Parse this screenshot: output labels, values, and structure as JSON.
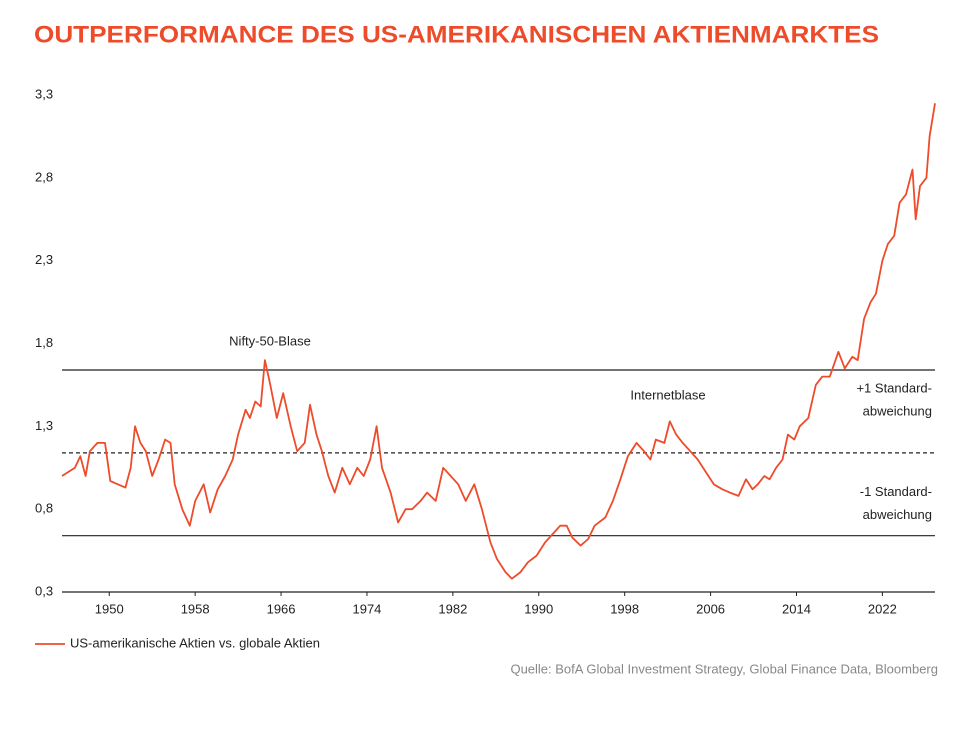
{
  "chart_data": {
    "type": "line",
    "title": "OUTPERFORMANCE DES US-AMERIKANISCHEN AKTIENMARKTES",
    "source": "Quelle: BofA Global Investment Strategy, Global Finance Data, Bloomberg",
    "x": [
      1945.6,
      1946.8,
      1947.3,
      1947.8,
      1948.2,
      1948.9,
      1949.6,
      1950.1,
      1950.8,
      1951.5,
      1952.0,
      1952.4,
      1952.9,
      1953.4,
      1954.0,
      1954.6,
      1955.2,
      1955.7,
      1956.1,
      1956.8,
      1957.5,
      1958.0,
      1958.8,
      1959.4,
      1960.1,
      1960.8,
      1961.5,
      1962.0,
      1962.7,
      1963.1,
      1963.6,
      1964.1,
      1964.5,
      1965.0,
      1965.6,
      1966.2,
      1966.9,
      1967.5,
      1968.2,
      1968.7,
      1969.3,
      1969.8,
      1970.4,
      1971.0,
      1971.7,
      1972.4,
      1973.1,
      1973.7,
      1974.3,
      1974.9,
      1975.4,
      1976.2,
      1976.9,
      1977.6,
      1978.2,
      1979.0,
      1979.6,
      1980.4,
      1981.1,
      1981.8,
      1982.5,
      1983.2,
      1984.0,
      1984.7,
      1985.5,
      1986.1,
      1986.9,
      1987.5,
      1988.3,
      1989.0,
      1989.8,
      1990.6,
      1991.3,
      1992.0,
      1992.6,
      1993.1,
      1993.9,
      1994.6,
      1995.2,
      1996.2,
      1996.9,
      1997.6,
      1998.3,
      1999.1,
      1999.8,
      2000.4,
      2000.9,
      2001.7,
      2002.2,
      2002.8,
      2003.4,
      2004.1,
      2004.8,
      2005.6,
      2006.3,
      2007.1,
      2007.8,
      2008.6,
      2009.3,
      2009.9,
      2010.4,
      2011.0,
      2011.5,
      2012.1,
      2012.7,
      2013.2,
      2013.8,
      2014.3,
      2015.1,
      2015.8,
      2016.4,
      2017.1,
      2017.9,
      2018.5,
      2019.2,
      2019.7,
      2020.3,
      2020.9,
      2021.4,
      2022.0,
      2022.5,
      2023.1,
      2023.6,
      2024.2,
      2024.8,
      2025.1,
      2025.5,
      2026.1,
      2026.4,
      2026.9
    ],
    "series": [
      {
        "name": "US-amerikanische Aktien vs. globale Aktien",
        "color": "#ee4b2b",
        "values": [
          1.0,
          1.05,
          1.12,
          1.0,
          1.15,
          1.2,
          1.2,
          0.97,
          0.95,
          0.93,
          1.05,
          1.3,
          1.2,
          1.15,
          1.0,
          1.1,
          1.22,
          1.2,
          0.95,
          0.8,
          0.7,
          0.85,
          0.95,
          0.78,
          0.92,
          1.0,
          1.1,
          1.25,
          1.4,
          1.35,
          1.45,
          1.42,
          1.7,
          1.55,
          1.35,
          1.5,
          1.3,
          1.15,
          1.2,
          1.43,
          1.25,
          1.15,
          1.0,
          0.9,
          1.05,
          0.95,
          1.05,
          1.0,
          1.1,
          1.3,
          1.05,
          0.9,
          0.72,
          0.8,
          0.8,
          0.85,
          0.9,
          0.85,
          1.05,
          1.0,
          0.95,
          0.85,
          0.95,
          0.8,
          0.6,
          0.5,
          0.42,
          0.38,
          0.42,
          0.48,
          0.52,
          0.6,
          0.65,
          0.7,
          0.7,
          0.63,
          0.58,
          0.62,
          0.7,
          0.75,
          0.85,
          0.98,
          1.12,
          1.2,
          1.15,
          1.1,
          1.22,
          1.2,
          1.33,
          1.25,
          1.2,
          1.15,
          1.1,
          1.02,
          0.95,
          0.92,
          0.9,
          0.88,
          0.98,
          0.92,
          0.95,
          1.0,
          0.98,
          1.05,
          1.1,
          1.25,
          1.22,
          1.3,
          1.35,
          1.55,
          1.6,
          1.6,
          1.75,
          1.65,
          1.72,
          1.7,
          1.95,
          2.05,
          2.1,
          2.3,
          2.4,
          2.45,
          2.65,
          2.7,
          2.85,
          2.55,
          2.75,
          2.8,
          3.05,
          3.25
        ]
      }
    ],
    "xlim": [
      1945.6,
      2026.9
    ],
    "ylim": [
      0.3,
      3.3
    ],
    "xticks": [
      1950,
      1958,
      1966,
      1974,
      1982,
      1990,
      1998,
      2006,
      2014,
      2022
    ],
    "yticks": [
      {
        "value": 0.3,
        "label": "0,3"
      },
      {
        "value": 0.8,
        "label": "0,8"
      },
      {
        "value": 1.3,
        "label": "1,3"
      },
      {
        "value": 1.8,
        "label": "1,8"
      },
      {
        "value": 2.3,
        "label": "2,3"
      },
      {
        "value": 2.8,
        "label": "2,8"
      },
      {
        "value": 3.3,
        "label": "3,3"
      }
    ],
    "hlines": [
      {
        "value": 1.64,
        "style": "solid",
        "label_lines": [
          "+1 Standard-",
          "abweichung"
        ]
      },
      {
        "value": 1.14,
        "style": "dashed"
      },
      {
        "value": 0.64,
        "style": "solid",
        "label_lines": [
          "-1 Standard-",
          "abweichung"
        ]
      }
    ],
    "annotations": [
      "Nifty-50-Blase",
      "Internetblase"
    ],
    "grid": false
  }
}
